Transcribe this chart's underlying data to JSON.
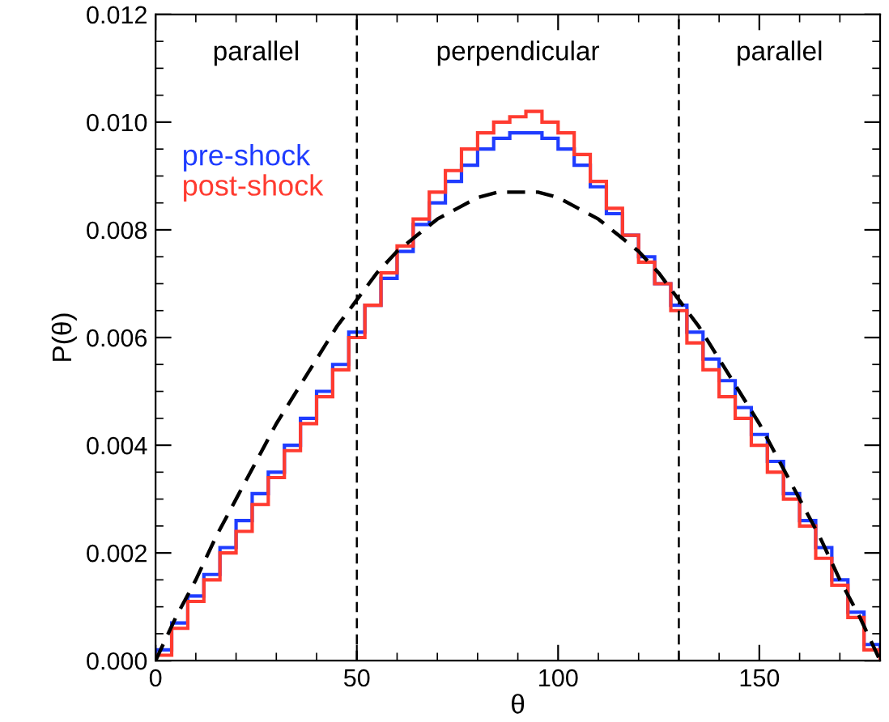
{
  "chart_data": {
    "type": "histogram",
    "xlabel": "θ",
    "ylabel": "P(θ)",
    "xlim": [
      0,
      180
    ],
    "ylim": [
      0,
      0.012
    ],
    "xticks": [
      0,
      50,
      100,
      150
    ],
    "yticks": [
      {
        "value": 0,
        "label": "0.000"
      },
      {
        "value": 0.002,
        "label": "0.002"
      },
      {
        "value": 0.004,
        "label": "0.004"
      },
      {
        "value": 0.006,
        "label": "0.006"
      },
      {
        "value": 0.008,
        "label": "0.008"
      },
      {
        "value": 0.01,
        "label": "0.010"
      },
      {
        "value": 0.012,
        "label": "0.012"
      }
    ],
    "bins": [
      0,
      4,
      8,
      12,
      16,
      20,
      24,
      28,
      32,
      36,
      40,
      44,
      48,
      52,
      56,
      60,
      64,
      68,
      72,
      76,
      80,
      84,
      88,
      92,
      96,
      100,
      104,
      108,
      112,
      116,
      120,
      124,
      128,
      132,
      136,
      140,
      144,
      148,
      152,
      156,
      160,
      164,
      168,
      172,
      176,
      180
    ],
    "series": [
      {
        "name": "pre-shock",
        "color": "#1f3cff",
        "values": [
          0.0002,
          0.0007,
          0.0012,
          0.0016,
          0.0021,
          0.0026,
          0.0031,
          0.0035,
          0.004,
          0.0045,
          0.005,
          0.0055,
          0.0061,
          0.0066,
          0.0071,
          0.0076,
          0.0081,
          0.0085,
          0.0089,
          0.0092,
          0.0095,
          0.0097,
          0.0098,
          0.0098,
          0.0097,
          0.0095,
          0.0092,
          0.0088,
          0.0083,
          0.0079,
          0.0075,
          0.007,
          0.0066,
          0.0061,
          0.0056,
          0.0052,
          0.0047,
          0.0042,
          0.0037,
          0.0031,
          0.0026,
          0.0021,
          0.0015,
          0.0009,
          0.0003
        ]
      },
      {
        "name": "post-shock",
        "color": "#ff3b30",
        "values": [
          0.0001,
          0.0006,
          0.0011,
          0.0015,
          0.002,
          0.0024,
          0.0029,
          0.0034,
          0.0039,
          0.0044,
          0.0049,
          0.0054,
          0.006,
          0.0066,
          0.0072,
          0.0077,
          0.0082,
          0.0087,
          0.0091,
          0.0095,
          0.0098,
          0.01,
          0.0101,
          0.0102,
          0.01,
          0.0098,
          0.0094,
          0.0089,
          0.0084,
          0.0079,
          0.0074,
          0.007,
          0.0065,
          0.0059,
          0.0054,
          0.0049,
          0.0045,
          0.004,
          0.0035,
          0.003,
          0.0025,
          0.0019,
          0.0014,
          0.0008,
          0.0002
        ]
      },
      {
        "type": "line",
        "color": "#000000",
        "line_style": "dashed",
        "x": [
          0,
          5,
          10,
          15,
          20,
          25,
          30,
          35,
          40,
          45,
          50,
          55,
          60,
          65,
          70,
          75,
          80,
          85,
          90,
          95,
          100,
          105,
          110,
          115,
          120,
          125,
          130,
          135,
          140,
          145,
          150,
          155,
          160,
          165,
          170,
          175,
          180
        ],
        "values": [
          0,
          0.0008,
          0.0015,
          0.0023,
          0.003,
          0.0037,
          0.0044,
          0.005,
          0.0056,
          0.0062,
          0.0067,
          0.0072,
          0.0076,
          0.0079,
          0.0082,
          0.0084,
          0.0086,
          0.0087,
          0.0087,
          0.0087,
          0.0086,
          0.0084,
          0.0082,
          0.0079,
          0.0076,
          0.0072,
          0.0067,
          0.0062,
          0.0056,
          0.005,
          0.0044,
          0.0037,
          0.003,
          0.0023,
          0.0015,
          0.0008,
          0
        ]
      }
    ],
    "ref_lines": [
      {
        "axis": "x",
        "value": 50,
        "color": "#000000",
        "line_style": "dashed"
      },
      {
        "axis": "x",
        "value": 130,
        "color": "#000000",
        "line_style": "dashed"
      }
    ],
    "annotations": [
      "parallel",
      "perpendicular",
      "parallel"
    ],
    "legend": "top left"
  }
}
